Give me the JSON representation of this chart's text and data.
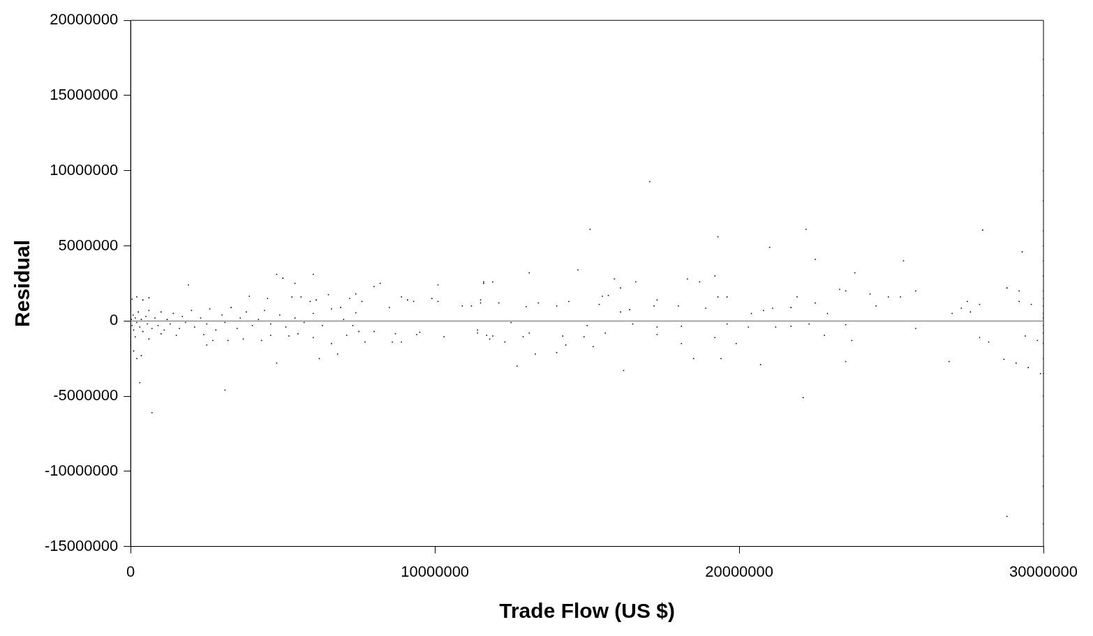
{
  "chart_data": {
    "type": "scatter",
    "xlabel": "Trade Flow (US $)",
    "ylabel": "Residual",
    "xlim": [
      0,
      30000000
    ],
    "xticks": [
      0,
      10000000,
      20000000,
      30000000
    ],
    "ylim": [
      -15000000,
      20000000
    ],
    "yticks": [
      -15000000,
      -10000000,
      -5000000,
      0,
      5000000,
      10000000,
      15000000,
      20000000
    ],
    "grid": false,
    "legend": false,
    "marker": "square",
    "ref_lines": [
      {
        "axis": "y",
        "value": 0,
        "color": "#808080"
      }
    ],
    "series": [
      {
        "color": "#000000",
        "x": [
          17060000,
          15100000,
          22200000,
          28000000,
          19300000,
          21000000,
          22500000,
          25400000,
          29300000,
          13100000,
          14700000,
          11600000,
          11900000,
          15900000,
          16600000,
          18300000,
          18700000,
          19200000,
          23800000,
          16100000,
          23300000,
          23500000,
          28800000,
          25800000,
          19300000,
          19600000,
          21900000,
          24300000,
          24900000,
          25300000,
          27500000,
          29200000,
          24500000,
          27300000,
          27000000,
          22500000,
          21100000,
          21700000,
          20800000,
          20400000,
          22900000,
          18000000,
          18900000,
          15500000,
          15700000,
          15400000,
          14400000,
          14000000,
          13400000,
          17300000,
          17200000,
          16400000,
          16100000,
          12100000,
          11500000,
          10900000,
          13000000,
          22100000,
          16200000,
          12700000,
          20700000,
          23500000,
          26900000,
          28700000,
          18500000,
          19400000,
          13300000,
          14000000,
          15200000,
          18100000,
          19900000,
          14300000,
          23700000,
          19200000,
          27900000,
          22800000,
          29400000,
          25800000,
          23500000,
          20300000,
          21200000,
          21700000,
          22300000,
          19600000,
          18100000,
          17300000,
          17300000,
          14900000,
          14200000,
          12900000,
          13100000,
          11900000,
          11700000,
          12300000,
          11400000,
          12500000,
          15000000,
          15600000,
          16500000,
          29500000,
          28800000,
          29200000,
          29600000,
          27900000,
          27600000,
          28200000,
          29800000,
          29100000,
          29900000,
          30000000,
          30000000,
          30000000,
          30000000,
          30000000,
          30000000,
          30000000,
          30000000,
          30000000,
          30000000,
          30000000,
          30000000,
          30000000,
          30000000,
          30000000,
          30000000,
          30000000,
          30000000,
          30000000,
          30000000,
          30000000,
          30000000,
          30000000,
          30000000,
          4800000,
          5000000,
          6000000,
          5400000,
          1900000,
          8200000,
          8000000,
          10100000,
          11600000,
          7400000,
          3900000,
          6500000,
          50000,
          600000,
          400000,
          200000,
          3100000,
          700000,
          300000,
          350000,
          200000,
          100000,
          4800000,
          6200000,
          6800000,
          2500000,
          2700000,
          3200000,
          4300000,
          7700000,
          8600000,
          8900000,
          6600000,
          4500000,
          5300000,
          5600000,
          6100000,
          5900000,
          7200000,
          7600000,
          8900000,
          9100000,
          9300000,
          9900000,
          10100000,
          11200000,
          11500000,
          8500000,
          6900000,
          7400000,
          8700000,
          9400000,
          9500000,
          10300000,
          11400000,
          11800000,
          7100000,
          7500000,
          8000000,
          6000000,
          5500000,
          5200000,
          4600000,
          3700000,
          2400000,
          1500000,
          1000000,
          600000,
          150000,
          20000,
          50000,
          80000,
          100000,
          150000,
          200000,
          250000,
          300000,
          350000,
          400000,
          500000,
          550000,
          600000,
          700000,
          800000,
          900000,
          1000000,
          1100000,
          1200000,
          1300000,
          1400000,
          1600000,
          1700000,
          1800000,
          2000000,
          2100000,
          2300000,
          2500000,
          2600000,
          2800000,
          3000000,
          3100000,
          3300000,
          3500000,
          3600000,
          3800000,
          4000000,
          4200000,
          4400000,
          4600000,
          4900000,
          5100000,
          5400000,
          5700000,
          6000000,
          6300000,
          6600000,
          7000000,
          7300000
        ],
        "values": [
          9270000,
          6100000,
          6100000,
          6050000,
          5600000,
          4900000,
          4100000,
          4000000,
          4600000,
          3200000,
          3400000,
          2600000,
          2600000,
          2800000,
          2600000,
          2800000,
          2600000,
          3000000,
          3200000,
          2200000,
          2100000,
          2000000,
          2200000,
          2000000,
          1600000,
          1600000,
          1600000,
          1800000,
          1600000,
          1600000,
          1300000,
          1300000,
          1000000,
          850000,
          500000,
          1200000,
          850000,
          900000,
          700000,
          500000,
          500000,
          1000000,
          850000,
          1650000,
          1700000,
          1100000,
          1300000,
          1000000,
          1200000,
          1400000,
          1000000,
          750000,
          600000,
          1200000,
          1400000,
          1000000,
          950000,
          -5100000,
          -3300000,
          -3000000,
          -2900000,
          -2700000,
          -2700000,
          -2550000,
          -2500000,
          -2500000,
          -2200000,
          -2100000,
          -1700000,
          -1500000,
          -1500000,
          -1600000,
          -1300000,
          -1100000,
          -1100000,
          -950000,
          -1000000,
          -500000,
          -250000,
          -400000,
          -400000,
          -350000,
          -200000,
          -200000,
          -350000,
          -400000,
          -900000,
          -1050000,
          -1000000,
          -1050000,
          -800000,
          -1000000,
          -950000,
          -1400000,
          -600000,
          -100000,
          -300000,
          -800000,
          -200000,
          -3100000,
          -13000000,
          2000000,
          1100000,
          1100000,
          600000,
          -1400000,
          -1300000,
          -2800000,
          -3500000,
          17400000,
          15000000,
          12500000,
          10000000,
          8000000,
          6000000,
          5000000,
          4000000,
          3000000,
          2000000,
          1500000,
          1000000,
          500000,
          200000,
          -300000,
          -800000,
          -1500000,
          -2500000,
          -3500000,
          -5000000,
          -7000000,
          -9000000,
          -11000000,
          -13500000,
          3100000,
          2850000,
          3100000,
          2500000,
          2400000,
          2500000,
          2300000,
          2400000,
          2500000,
          1800000,
          1650000,
          1750000,
          1450000,
          1550000,
          1400000,
          1600000,
          -4600000,
          -6100000,
          -4100000,
          -2300000,
          -2500000,
          -2000000,
          -2800000,
          -2500000,
          -2200000,
          -1600000,
          -1300000,
          -1300000,
          -1300000,
          -1400000,
          -1400000,
          -1400000,
          -1500000,
          1500000,
          1600000,
          1600000,
          1400000,
          1300000,
          1500000,
          1300000,
          1600000,
          1400000,
          1300000,
          1500000,
          1300000,
          1000000,
          1200000,
          900000,
          900000,
          550000,
          -850000,
          -900000,
          -750000,
          -1050000,
          -800000,
          -1200000,
          -950000,
          -700000,
          -700000,
          -1100000,
          -850000,
          -1000000,
          -950000,
          -1200000,
          -900000,
          -950000,
          -850000,
          -1200000,
          -1050000,
          100000,
          -300000,
          400000,
          -600000,
          200000,
          -100000,
          600000,
          -400000,
          100000,
          -700000,
          300000,
          -200000,
          700000,
          -500000,
          200000,
          -300000,
          600000,
          -600000,
          100000,
          -200000,
          500000,
          -500000,
          300000,
          -100000,
          700000,
          -400000,
          200000,
          -200000,
          800000,
          -600000,
          400000,
          -100000,
          900000,
          -500000,
          200000,
          600000,
          -300000,
          100000,
          700000,
          -200000,
          400000,
          -400000,
          200000,
          -100000,
          500000,
          -300000,
          800000,
          100000,
          -300000
        ]
      }
    ]
  }
}
